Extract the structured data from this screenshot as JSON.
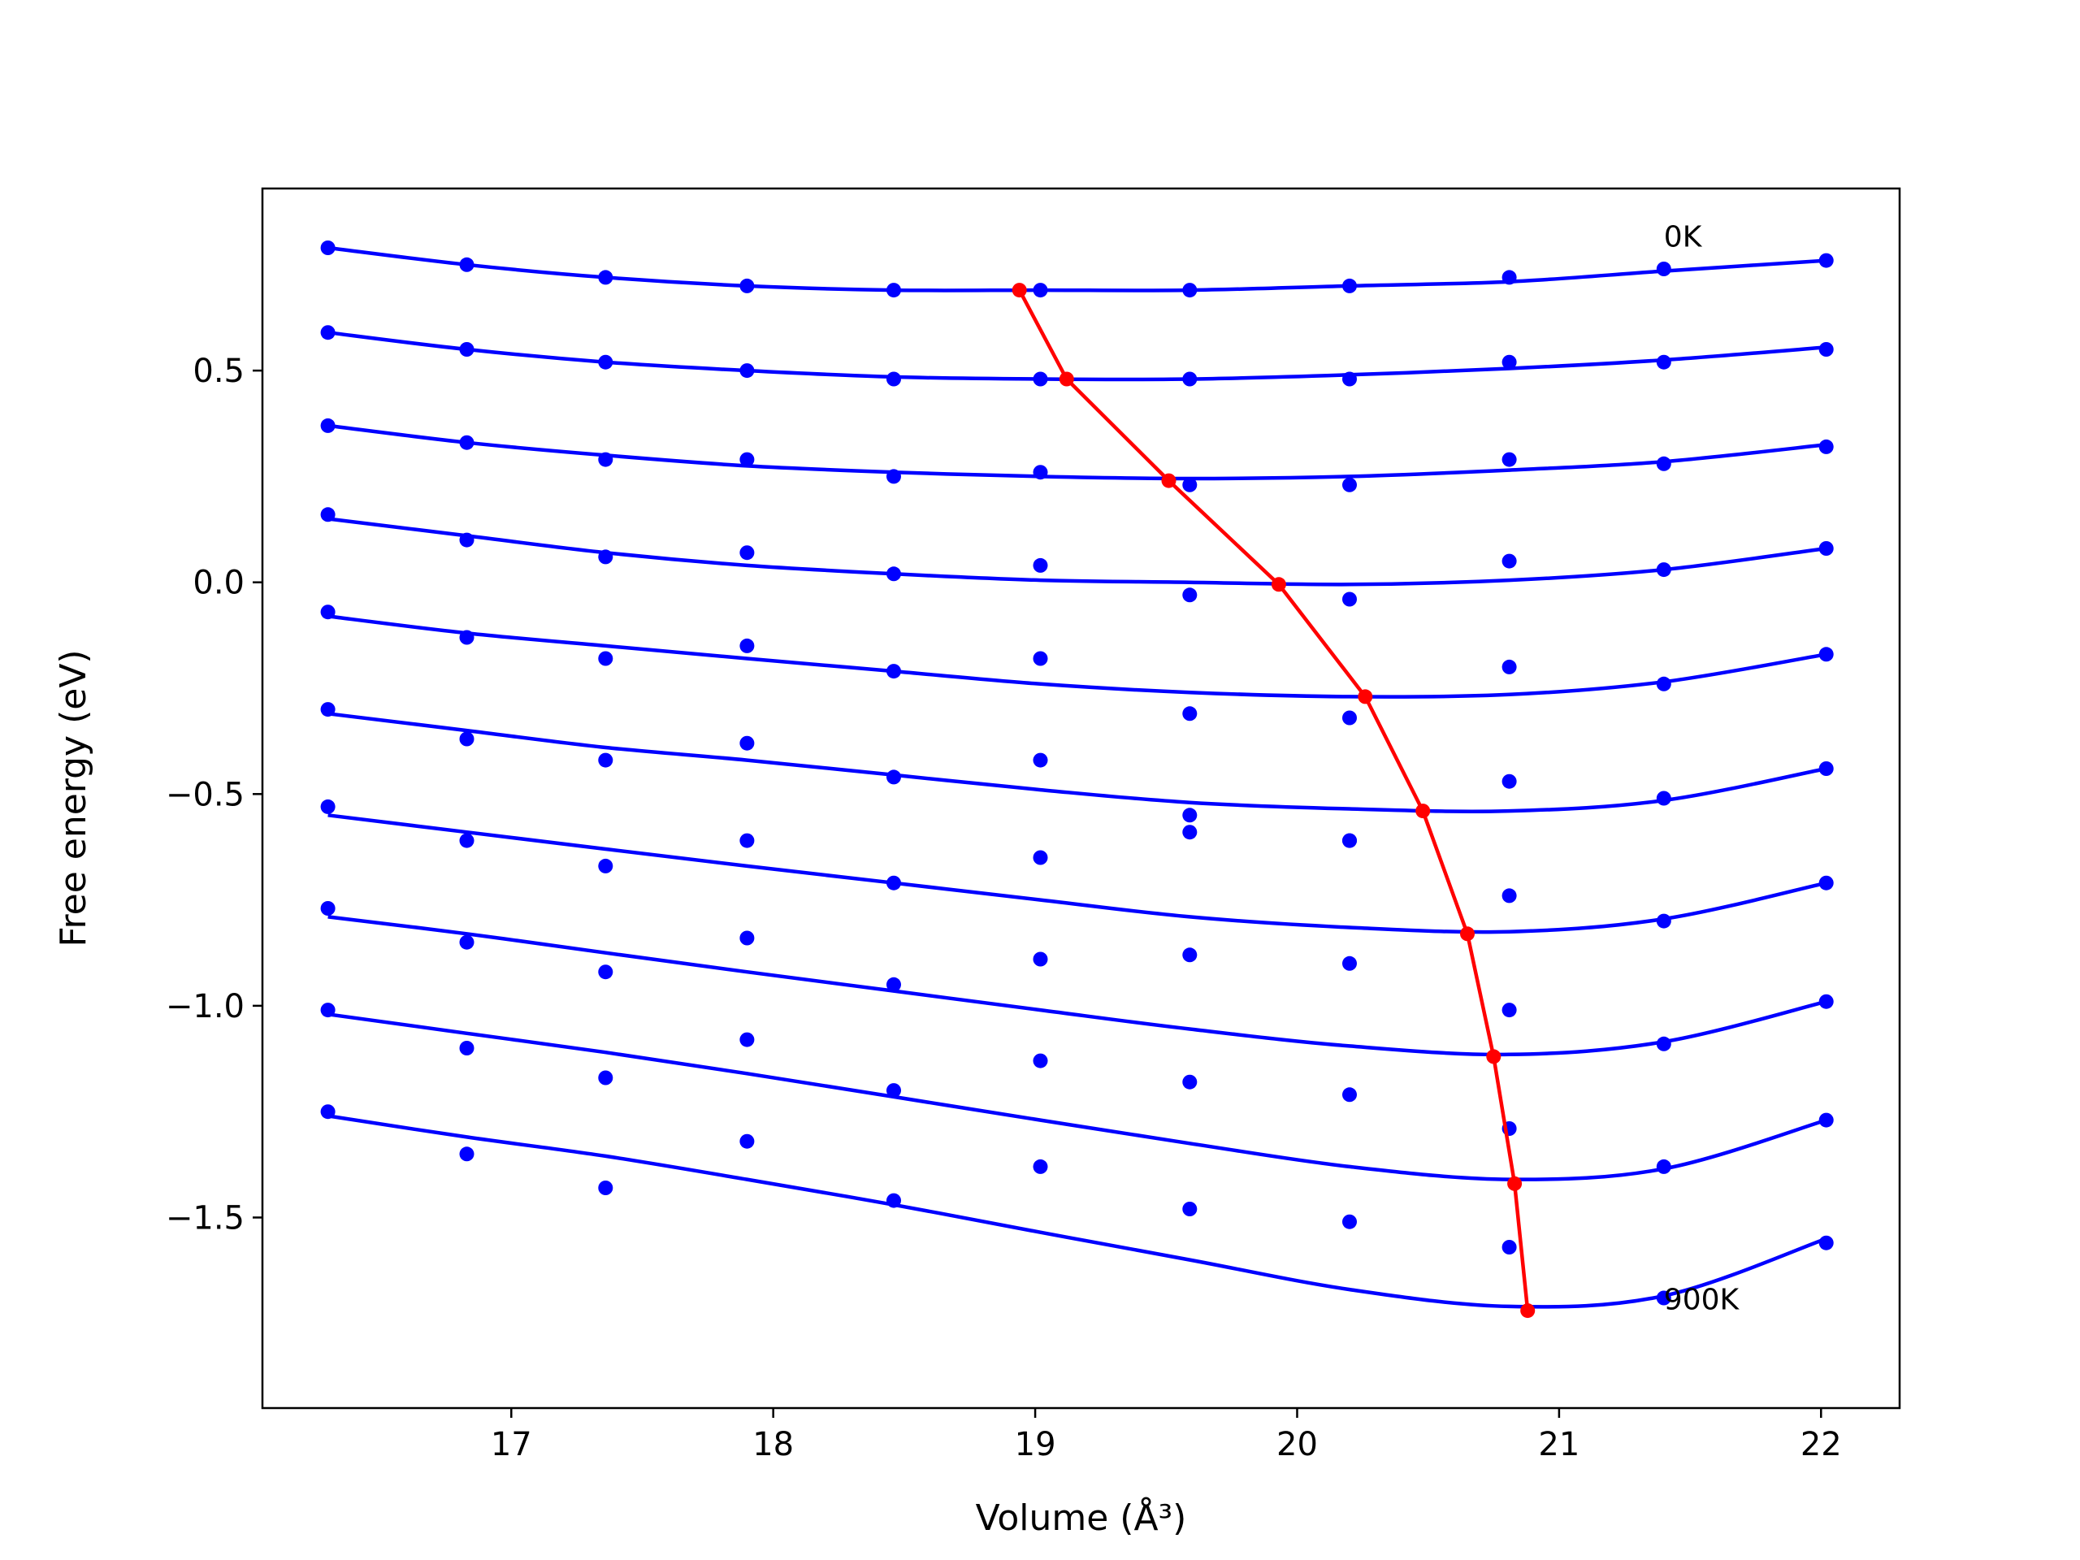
{
  "chart_data": {
    "type": "line",
    "xlabel": "Volume (Å³)",
    "ylabel": "Free energy (eV)",
    "xlim": [
      16.05,
      22.3
    ],
    "ylim": [
      -1.95,
      0.93
    ],
    "xticks": [
      17,
      18,
      19,
      20,
      21,
      22
    ],
    "yticks": [
      -1.5,
      -1.0,
      -0.5,
      0.0,
      0.5
    ],
    "ytick_labels": [
      "−1.5",
      "−1.0",
      "−0.5",
      "0.0",
      "0.5"
    ],
    "grid": false,
    "x": [
      16.3,
      16.83,
      17.36,
      17.9,
      18.46,
      19.02,
      19.59,
      20.2,
      20.81,
      21.4,
      22.02
    ],
    "colors": {
      "curves": "#0000ff",
      "minima": "#ff0000"
    },
    "annotations": [
      {
        "text": "0K",
        "x": 21.4,
        "y": 0.82
      },
      {
        "text": "900K",
        "x": 21.4,
        "y": -1.69
      }
    ],
    "series": [
      {
        "points": [
          0.79,
          0.75,
          0.72,
          0.7,
          0.69,
          0.69,
          0.69,
          0.7,
          0.72,
          0.74,
          0.76
        ],
        "fit": [
          0.79,
          0.75,
          0.72,
          0.7,
          0.69,
          0.69,
          0.69,
          0.7,
          0.71,
          0.735,
          0.76
        ]
      },
      {
        "points": [
          0.59,
          0.55,
          0.52,
          0.5,
          0.48,
          0.48,
          0.48,
          0.48,
          0.52,
          0.52,
          0.55
        ],
        "fit": [
          0.59,
          0.55,
          0.52,
          0.5,
          0.485,
          0.48,
          0.48,
          0.49,
          0.505,
          0.525,
          0.555
        ]
      },
      {
        "points": [
          0.37,
          0.33,
          0.29,
          0.29,
          0.25,
          0.26,
          0.23,
          0.23,
          0.29,
          0.28,
          0.32
        ],
        "fit": [
          0.37,
          0.33,
          0.3,
          0.275,
          0.26,
          0.25,
          0.245,
          0.25,
          0.265,
          0.285,
          0.325
        ]
      },
      {
        "points": [
          0.16,
          0.1,
          0.06,
          0.07,
          0.02,
          0.04,
          -0.03,
          -0.04,
          0.05,
          0.03,
          0.08
        ],
        "fit": [
          0.15,
          0.11,
          0.07,
          0.04,
          0.02,
          0.005,
          0.0,
          -0.005,
          0.005,
          0.03,
          0.08
        ]
      },
      {
        "points": [
          -0.07,
          -0.13,
          -0.18,
          -0.15,
          -0.21,
          -0.18,
          -0.31,
          -0.32,
          -0.2,
          -0.24,
          -0.17
        ],
        "fit": [
          -0.08,
          -0.12,
          -0.15,
          -0.18,
          -0.21,
          -0.24,
          -0.26,
          -0.27,
          -0.265,
          -0.235,
          -0.17
        ]
      },
      {
        "points": [
          -0.3,
          -0.37,
          -0.42,
          -0.38,
          -0.46,
          -0.42,
          -0.55,
          -0.61,
          -0.47,
          -0.51,
          -0.44
        ],
        "fit": [
          -0.31,
          -0.35,
          -0.39,
          -0.42,
          -0.455,
          -0.49,
          -0.52,
          -0.535,
          -0.54,
          -0.515,
          -0.44
        ]
      },
      {
        "points": [
          -0.53,
          -0.61,
          -0.67,
          -0.61,
          -0.71,
          -0.65,
          -0.59,
          -0.61,
          -0.74,
          -0.8,
          -0.71
        ],
        "fit": [
          -0.55,
          -0.59,
          -0.63,
          -0.67,
          -0.71,
          -0.75,
          -0.79,
          -0.815,
          -0.825,
          -0.795,
          -0.71
        ]
      },
      {
        "points": [
          -0.77,
          -0.85,
          -0.92,
          -0.84,
          -0.95,
          -0.89,
          -0.88,
          -0.9,
          -1.01,
          -1.09,
          -0.99
        ],
        "fit": [
          -0.79,
          -0.83,
          -0.875,
          -0.92,
          -0.965,
          -1.01,
          -1.055,
          -1.095,
          -1.115,
          -1.085,
          -0.99
        ]
      },
      {
        "points": [
          -1.01,
          -1.1,
          -1.17,
          -1.08,
          -1.2,
          -1.13,
          -1.18,
          -1.21,
          -1.29,
          -1.38,
          -1.27
        ],
        "fit": [
          -1.02,
          -1.065,
          -1.11,
          -1.16,
          -1.215,
          -1.27,
          -1.325,
          -1.38,
          -1.41,
          -1.385,
          -1.27
        ]
      },
      {
        "points": [
          -1.25,
          -1.35,
          -1.43,
          -1.32,
          -1.46,
          -1.38,
          -1.48,
          -1.51,
          -1.57,
          -1.69,
          -1.56
        ],
        "fit": [
          -1.26,
          -1.31,
          -1.355,
          -1.41,
          -1.47,
          -1.535,
          -1.6,
          -1.67,
          -1.71,
          -1.685,
          -1.55
        ]
      }
    ],
    "minima": {
      "x": [
        18.94,
        19.12,
        19.51,
        19.93,
        20.26,
        20.48,
        20.65,
        20.75,
        20.83,
        20.88
      ],
      "y": [
        0.69,
        0.48,
        0.24,
        -0.005,
        -0.27,
        -0.54,
        -0.83,
        -1.12,
        -1.42,
        -1.72
      ]
    }
  }
}
